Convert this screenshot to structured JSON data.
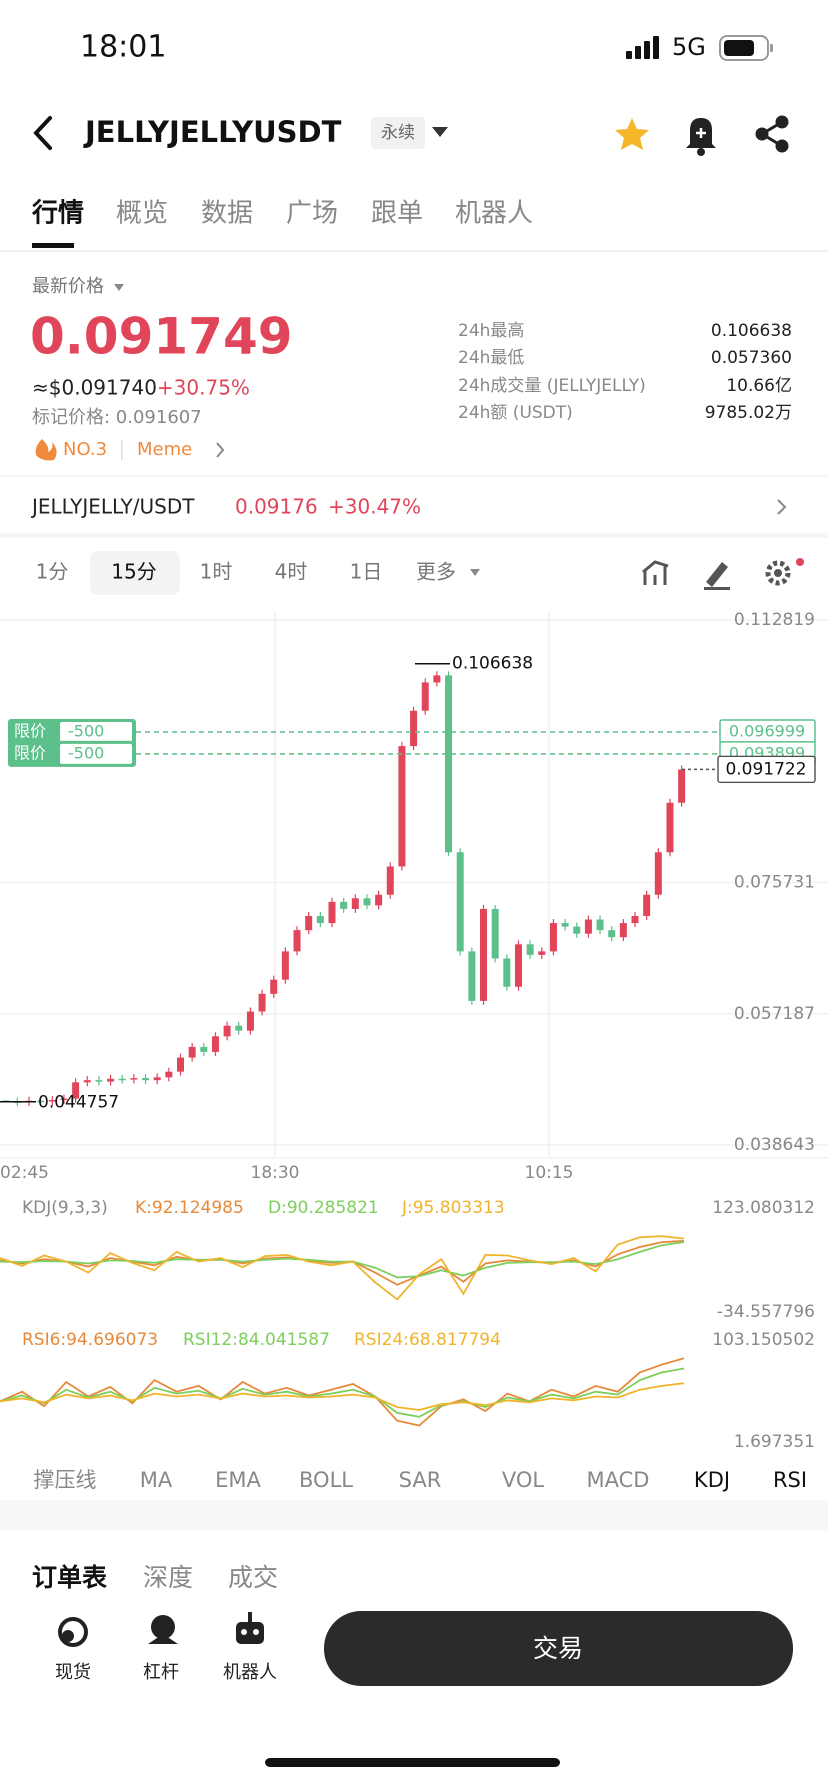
{
  "status_bar": {
    "time": "18:01",
    "network": "5G"
  },
  "header": {
    "symbol": "JELLYJELLYUSDT",
    "contract_type": "永续"
  },
  "tabs": [
    "行情",
    "概览",
    "数据",
    "广场",
    "跟单",
    "机器人"
  ],
  "price_panel": {
    "last_price_label": "最新价格",
    "last_price": "0.091749",
    "usd_price": "≈$0.091740",
    "change": "+30.75%",
    "mark_price": "标记价格: 0.091607",
    "rank": "NO.3",
    "tag": "Meme",
    "stats": [
      {
        "label": "24h最高",
        "value": "0.106638"
      },
      {
        "label": "24h最低",
        "value": "0.057360"
      },
      {
        "label": "24h成交量 (JELLYJELLY)",
        "value": "10.66亿"
      },
      {
        "label": "24h额 (USDT)",
        "value": "9785.02万"
      }
    ]
  },
  "spot_pair": {
    "name": "JELLYJELLY/USDT",
    "price": "0.09176",
    "change": "+30.47%"
  },
  "intervals": [
    "1分",
    "15分",
    "1时",
    "4时",
    "1日",
    "更多"
  ],
  "chart_data": {
    "type": "candlestick",
    "up_color": "#e0455a",
    "down_color": "#5cc08b",
    "closes": [
      0.0448,
      0.0447,
      0.0449,
      0.0448,
      0.045,
      0.0452,
      0.0475,
      0.0478,
      0.0476,
      0.048,
      0.0479,
      0.0481,
      0.0478,
      0.0482,
      0.049,
      0.051,
      0.0525,
      0.0518,
      0.054,
      0.0555,
      0.0548,
      0.0575,
      0.06,
      0.062,
      0.066,
      0.069,
      0.071,
      0.07,
      0.073,
      0.072,
      0.0735,
      0.0725,
      0.074,
      0.078,
      0.095,
      0.1,
      0.104,
      0.105,
      0.08,
      0.066,
      0.059,
      0.072,
      0.065,
      0.061,
      0.067,
      0.0655,
      0.066,
      0.07,
      0.0695,
      0.0685,
      0.0705,
      0.069,
      0.068,
      0.07,
      0.071,
      0.074,
      0.08,
      0.087,
      0.0917
    ],
    "ylim": [
      0.038643,
      0.112819
    ],
    "yticks": [
      0.112819,
      0.075731,
      0.057187,
      0.038643
    ],
    "x_labels": [
      "02:45",
      "18:30",
      "10:15"
    ],
    "high_marker": 0.106638,
    "low_marker": 0.044757,
    "orders": [
      {
        "type": "限价",
        "qty": "-500",
        "price": 0.096999
      },
      {
        "type": "限价",
        "qty": "-500",
        "price": 0.093899
      }
    ],
    "current_price": 0.091722
  },
  "kdj": {
    "label": "KDJ(9,3,3)",
    "ylim": [
      -34.557796,
      123.080312
    ],
    "series": [
      {
        "name": "K:92.124985",
        "color": "#e8893a",
        "values": [
          60,
          55,
          62,
          58,
          50,
          64,
          58,
          52,
          66,
          60,
          62,
          55,
          63,
          65,
          60,
          56,
          58,
          40,
          20,
          35,
          50,
          25,
          55,
          60,
          58,
          56,
          60,
          50,
          70,
          82,
          90,
          92.1
        ]
      },
      {
        "name": "D:90.285821",
        "color": "#7ccf5b",
        "values": [
          58,
          57,
          59,
          58,
          55,
          60,
          59,
          56,
          62,
          61,
          61,
          58,
          61,
          63,
          61,
          58,
          58,
          48,
          32,
          34,
          44,
          35,
          48,
          56,
          57,
          57,
          58,
          54,
          62,
          74,
          85,
          90.3
        ]
      },
      {
        "name": "J:95.803313",
        "color": "#f0b32b",
        "values": [
          64,
          51,
          68,
          58,
          40,
          72,
          56,
          44,
          74,
          58,
          64,
          49,
          67,
          69,
          58,
          52,
          58,
          24,
          -4,
          37,
          62,
          5,
          69,
          68,
          60,
          54,
          64,
          42,
          86,
          98,
          100,
          95.8
        ]
      }
    ]
  },
  "rsi": {
    "ylim": [
      1.697351,
      103.150502
    ],
    "series": [
      {
        "name": "RSI6:94.696073",
        "color": "#e8893a",
        "values": [
          50,
          60,
          45,
          70,
          55,
          65,
          48,
          72,
          60,
          66,
          52,
          70,
          58,
          64,
          56,
          62,
          68,
          55,
          30,
          25,
          45,
          52,
          40,
          58,
          50,
          62,
          55,
          66,
          60,
          80,
          88,
          94.7
        ]
      },
      {
        "name": "RSI12:84.041587",
        "color": "#7ccf5b",
        "values": [
          50,
          56,
          48,
          62,
          54,
          60,
          50,
          64,
          58,
          61,
          53,
          63,
          57,
          60,
          55,
          58,
          62,
          55,
          38,
          34,
          46,
          50,
          44,
          54,
          50,
          57,
          53,
          60,
          57,
          72,
          80,
          84.0
        ]
      },
      {
        "name": "RSI24:68.817794",
        "color": "#f0b32b",
        "values": [
          50,
          53,
          49,
          57,
          53,
          56,
          51,
          58,
          55,
          57,
          53,
          58,
          55,
          56,
          54,
          55,
          57,
          54,
          44,
          41,
          47,
          49,
          46,
          51,
          49,
          53,
          51,
          55,
          54,
          62,
          66,
          68.8
        ]
      }
    ]
  },
  "indicators": [
    "撑压线",
    "MA",
    "EMA",
    "BOLL",
    "SAR",
    "VOL",
    "MACD",
    "KDJ",
    "RSI"
  ],
  "order_tabs": [
    "订单表",
    "深度",
    "成交"
  ],
  "bottom_nav": [
    "现货",
    "杠杆",
    "机器人"
  ],
  "trade_button": "交易"
}
